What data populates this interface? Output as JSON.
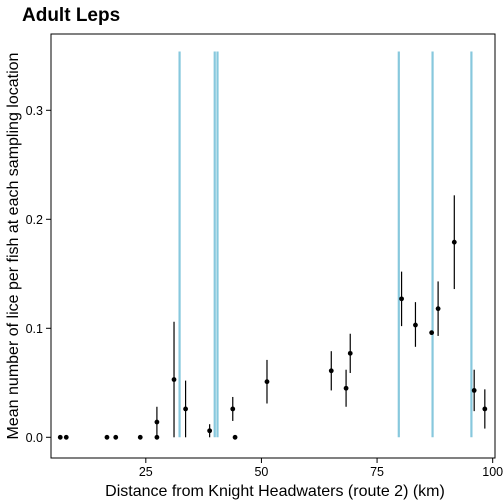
{
  "chart_data": {
    "type": "scatter",
    "title": "Adult Leps",
    "xlabel": "Distance from Knight Headwaters (route 2) (km)",
    "ylabel": "Mean number of lice per fish at each sampling location",
    "xlim": [
      4.5,
      100.5
    ],
    "ylim": [
      -0.019,
      0.37
    ],
    "xticks": [
      {
        "value": 25,
        "label": "25"
      },
      {
        "value": 50,
        "label": "50"
      },
      {
        "value": 75,
        "label": "75"
      },
      {
        "value": 100,
        "label": "100"
      }
    ],
    "yticks": [
      {
        "value": 0.0,
        "label": "0.0"
      },
      {
        "value": 0.1,
        "label": "0.1"
      },
      {
        "value": 0.2,
        "label": "0.2"
      },
      {
        "value": 0.3,
        "label": "0.3"
      }
    ],
    "grid": false,
    "legend": "none",
    "vlines": {
      "color": "#87c8dd",
      "x": [
        32.3,
        39.9,
        40.5,
        79.7,
        87.0,
        95.4
      ],
      "ymax": 0.354
    },
    "points_color": "#000000",
    "points": [
      {
        "x": 6.5,
        "y": 0.0,
        "lo": null,
        "hi": null
      },
      {
        "x": 7.8,
        "y": 0.0,
        "lo": null,
        "hi": null
      },
      {
        "x": 16.6,
        "y": 0.0,
        "lo": null,
        "hi": null
      },
      {
        "x": 18.5,
        "y": 0.0,
        "lo": null,
        "hi": null
      },
      {
        "x": 23.8,
        "y": 0.0,
        "lo": null,
        "hi": null
      },
      {
        "x": 27.4,
        "y": 0.014,
        "lo": 0.0,
        "hi": 0.028
      },
      {
        "x": 27.4,
        "y": 0.0,
        "lo": null,
        "hi": null
      },
      {
        "x": 31.1,
        "y": 0.053,
        "lo": 0.0,
        "hi": 0.106
      },
      {
        "x": 33.6,
        "y": 0.026,
        "lo": 0.0,
        "hi": 0.052
      },
      {
        "x": 38.8,
        "y": 0.006,
        "lo": 0.0,
        "hi": 0.012
      },
      {
        "x": 43.8,
        "y": 0.026,
        "lo": 0.015,
        "hi": 0.037
      },
      {
        "x": 44.3,
        "y": 0.0,
        "lo": null,
        "hi": null
      },
      {
        "x": 51.2,
        "y": 0.051,
        "lo": 0.031,
        "hi": 0.071
      },
      {
        "x": 65.1,
        "y": 0.061,
        "lo": 0.043,
        "hi": 0.079
      },
      {
        "x": 68.3,
        "y": 0.045,
        "lo": 0.028,
        "hi": 0.062
      },
      {
        "x": 69.2,
        "y": 0.077,
        "lo": 0.059,
        "hi": 0.095
      },
      {
        "x": 80.3,
        "y": 0.127,
        "lo": 0.102,
        "hi": 0.152
      },
      {
        "x": 83.3,
        "y": 0.103,
        "lo": 0.083,
        "hi": 0.124
      },
      {
        "x": 86.8,
        "y": 0.096,
        "lo": 0.095,
        "hi": 0.097
      },
      {
        "x": 88.2,
        "y": 0.118,
        "lo": 0.093,
        "hi": 0.143
      },
      {
        "x": 91.7,
        "y": 0.179,
        "lo": 0.136,
        "hi": 0.222
      },
      {
        "x": 96.0,
        "y": 0.043,
        "lo": 0.024,
        "hi": 0.062
      },
      {
        "x": 98.3,
        "y": 0.026,
        "lo": 0.008,
        "hi": 0.044
      }
    ]
  }
}
